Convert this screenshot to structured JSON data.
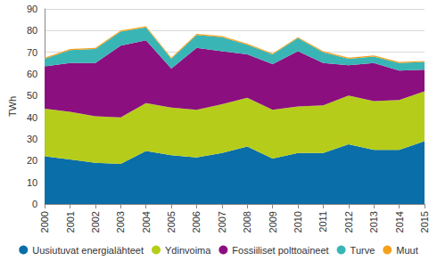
{
  "chart_data": {
    "type": "area",
    "stacked": true,
    "grid": true,
    "legend": "bottom",
    "y_label": "TWh",
    "categories": [
      "2000",
      "2001",
      "2002",
      "2003",
      "2004",
      "2005",
      "2006",
      "2007",
      "2008",
      "2009",
      "2010",
      "2011",
      "2012",
      "2013",
      "2014",
      "2015"
    ],
    "ylim": [
      0,
      90
    ],
    "yticks": [
      0,
      10,
      20,
      30,
      40,
      50,
      60,
      70,
      80,
      90
    ],
    "series": [
      {
        "name": "Uusiutuvat energialähteet",
        "color": "#0a6ea8",
        "values": [
          22,
          20.5,
          19,
          18.5,
          24.5,
          22.5,
          21.5,
          23.5,
          26.5,
          21,
          23.5,
          23.5,
          27.5,
          25,
          25,
          29
        ]
      },
      {
        "name": "Ydinvoima",
        "color": "#b5cd1a",
        "values": [
          22,
          22,
          21.5,
          21.5,
          22,
          22,
          22,
          22.5,
          22.5,
          22.5,
          21.5,
          22,
          22.5,
          22.5,
          23,
          23
        ]
      },
      {
        "name": "Fossiiliset polttoaineet",
        "color": "#8b0f7f",
        "values": [
          19.5,
          22.5,
          24.5,
          33,
          29,
          18,
          28.5,
          24.5,
          20,
          21,
          25.5,
          19.5,
          14,
          17.5,
          13.5,
          10
        ]
      },
      {
        "name": "Turve",
        "color": "#3ab5b5",
        "values": [
          3.5,
          6,
          6.5,
          6.5,
          6,
          4.5,
          6,
          6.5,
          4.5,
          4.5,
          6,
          5,
          3,
          3,
          3.5,
          3.5
        ]
      },
      {
        "name": "Muut",
        "color": "#f4a11d",
        "values": [
          0.5,
          0.5,
          0.5,
          0.5,
          0.5,
          0.5,
          0.5,
          0.5,
          0.5,
          0.5,
          0.5,
          0.5,
          0.5,
          0.5,
          0.5,
          0.5
        ]
      }
    ]
  }
}
